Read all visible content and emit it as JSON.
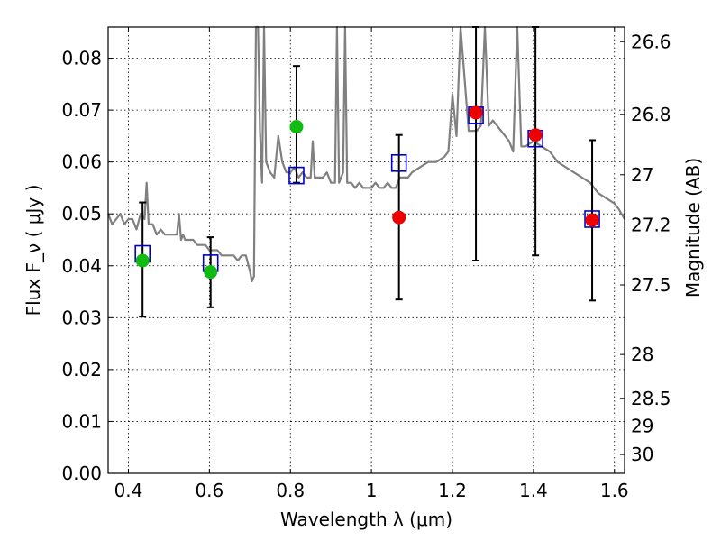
{
  "chart_data": {
    "type": "scatter",
    "xlabel": "Wavelength  λ (μm)",
    "ylabel": "Flux  F_ν  ( μJy )",
    "ylabel_right": "Magnitude (AB)",
    "xlim": [
      0.35,
      1.625
    ],
    "ylim": [
      0.0,
      0.086
    ],
    "grid": true,
    "x_ticks": [
      0.4,
      0.6,
      0.8,
      1.0,
      1.2,
      1.4,
      1.6
    ],
    "x_tick_labels": [
      "0.4",
      "0.6",
      "0.8",
      "1",
      "1.2",
      "1.4",
      "1.6"
    ],
    "y_ticks": [
      0.0,
      0.01,
      0.02,
      0.03,
      0.04,
      0.05,
      0.06,
      0.07,
      0.08
    ],
    "y_tick_labels": [
      "0.00",
      "0.01",
      "0.02",
      "0.03",
      "0.04",
      "0.05",
      "0.06",
      "0.07",
      "0.08"
    ],
    "mag_ticks": [
      26.6,
      26.8,
      27,
      27.2,
      27.5,
      28,
      28.5,
      29,
      30
    ],
    "mag_tick_labels": [
      "26.6",
      "26.8",
      "27",
      "27.2",
      "27.5",
      "28",
      "28.5",
      "29",
      "30"
    ],
    "colors": {
      "model": "#808080",
      "model_points": "#0000cc",
      "green_points": "#11bb11",
      "red_points": "#ee0000",
      "errorbar": "#000000"
    },
    "series": [
      {
        "marker": "line",
        "color": "#808080",
        "x": [
          0.35,
          0.36,
          0.37,
          0.38,
          0.39,
          0.4,
          0.41,
          0.42,
          0.43,
          0.44,
          0.445,
          0.45,
          0.46,
          0.47,
          0.48,
          0.49,
          0.5,
          0.51,
          0.52,
          0.525,
          0.53,
          0.535,
          0.54,
          0.55,
          0.56,
          0.57,
          0.58,
          0.59,
          0.6,
          0.61,
          0.62,
          0.63,
          0.64,
          0.65,
          0.66,
          0.67,
          0.68,
          0.69,
          0.7,
          0.705,
          0.71,
          0.715,
          0.72,
          0.725,
          0.73,
          0.735,
          0.74,
          0.75,
          0.76,
          0.77,
          0.78,
          0.79,
          0.8,
          0.81,
          0.82,
          0.83,
          0.84,
          0.85,
          0.855,
          0.86,
          0.87,
          0.88,
          0.89,
          0.9,
          0.91,
          0.915,
          0.92,
          0.93,
          0.935,
          0.94,
          0.95,
          0.96,
          0.97,
          0.98,
          0.99,
          1.0,
          1.01,
          1.02,
          1.03,
          1.04,
          1.05,
          1.06,
          1.07,
          1.08,
          1.09,
          1.1,
          1.12,
          1.14,
          1.16,
          1.18,
          1.19,
          1.2,
          1.21,
          1.22,
          1.24,
          1.26,
          1.27,
          1.28,
          1.29,
          1.3,
          1.32,
          1.34,
          1.35,
          1.36,
          1.37,
          1.38,
          1.4,
          1.42,
          1.44,
          1.46,
          1.48,
          1.5,
          1.52,
          1.54,
          1.56,
          1.58,
          1.6,
          1.61,
          1.625
        ],
        "values": [
          0.05,
          0.048,
          0.049,
          0.05,
          0.048,
          0.049,
          0.049,
          0.047,
          0.05,
          0.049,
          0.056,
          0.048,
          0.048,
          0.046,
          0.047,
          0.046,
          0.046,
          0.046,
          0.046,
          0.05,
          0.045,
          0.046,
          0.045,
          0.045,
          0.045,
          0.044,
          0.044,
          0.044,
          0.043,
          0.043,
          0.043,
          0.042,
          0.042,
          0.042,
          0.042,
          0.041,
          0.042,
          0.042,
          0.039,
          0.037,
          0.038,
          0.09,
          0.09,
          0.066,
          0.056,
          0.09,
          0.06,
          0.058,
          0.057,
          0.065,
          0.06,
          0.058,
          0.058,
          0.059,
          0.057,
          0.058,
          0.057,
          0.057,
          0.064,
          0.057,
          0.057,
          0.057,
          0.058,
          0.056,
          0.056,
          0.09,
          0.056,
          0.058,
          0.09,
          0.056,
          0.056,
          0.055,
          0.056,
          0.055,
          0.055,
          0.055,
          0.056,
          0.055,
          0.055,
          0.056,
          0.055,
          0.055,
          0.057,
          0.057,
          0.057,
          0.058,
          0.059,
          0.06,
          0.06,
          0.061,
          0.062,
          0.073,
          0.065,
          0.09,
          0.066,
          0.066,
          0.067,
          0.09,
          0.067,
          0.068,
          0.066,
          0.064,
          0.062,
          0.09,
          0.063,
          0.063,
          0.064,
          0.063,
          0.062,
          0.06,
          0.059,
          0.058,
          0.057,
          0.056,
          0.054,
          0.053,
          0.052,
          0.051,
          0.049
        ]
      },
      {
        "marker": "open-square",
        "color": "#0000cc",
        "x": [
          0.435,
          0.603,
          0.815,
          1.068,
          1.258,
          1.405,
          1.545
        ],
        "values": [
          0.0423,
          0.0405,
          0.0574,
          0.0598,
          0.069,
          0.0645,
          0.049
        ]
      },
      {
        "marker": "filled-circle",
        "color": "#11bb11",
        "x": [
          0.435,
          0.603,
          0.815
        ],
        "values": [
          0.041,
          0.0388,
          0.0668
        ],
        "yerr_low": [
          0.0302,
          0.032,
          0.056
        ],
        "yerr_high": [
          0.0522,
          0.0455,
          0.0785
        ]
      },
      {
        "marker": "filled-circle",
        "color": "#ee0000",
        "x": [
          1.068,
          1.258,
          1.405,
          1.545
        ],
        "values": [
          0.0493,
          0.0695,
          0.0652,
          0.0488
        ],
        "yerr_low": [
          0.0335,
          0.041,
          0.042,
          0.0333
        ],
        "yerr_high": [
          0.0652,
          0.086,
          0.086,
          0.0642
        ]
      }
    ]
  }
}
